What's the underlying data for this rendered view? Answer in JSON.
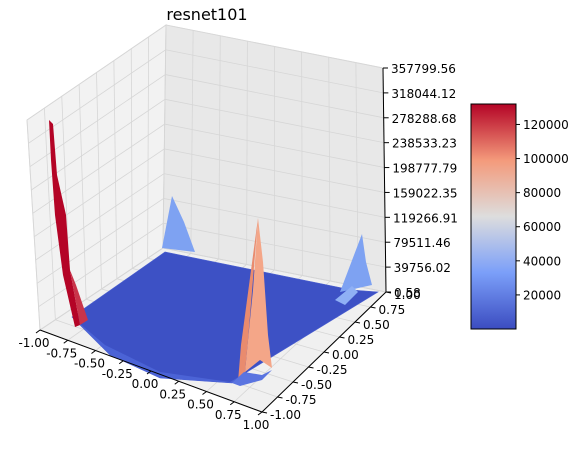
{
  "chart_data": {
    "type": "surface",
    "title": "resnet101",
    "x_ticks": [
      "-1.00",
      "-0.75",
      "-0.50",
      "-0.25",
      "0.00",
      "0.25",
      "0.50",
      "0.75",
      "1.00"
    ],
    "y_ticks": [
      "-1.00",
      "-0.75",
      "-0.50",
      "-0.25",
      "0.00",
      "0.25",
      "0.50",
      "0.75",
      "1.00"
    ],
    "z_ticks": [
      "0.58",
      "39756.02",
      "79511.46",
      "119266.91",
      "159022.35",
      "198777.79",
      "238533.23",
      "278288.68",
      "318044.12",
      "357799.56"
    ],
    "xlim": [
      -1.0,
      1.0
    ],
    "ylim": [
      -1.0,
      1.0
    ],
    "zlim": [
      0.58,
      357799.56
    ],
    "colormap": "coolwarm",
    "colorbar": {
      "ticks": [
        "20000",
        "40000",
        "60000",
        "80000",
        "100000",
        "120000"
      ],
      "range": [
        0.58,
        132000
      ]
    },
    "features": [
      {
        "kind": "edge-spike",
        "x": -1.0,
        "y": 1.0,
        "z": 305000,
        "color": "#b40426"
      },
      {
        "kind": "center-spike",
        "x": 0.0,
        "y": 0.0,
        "z": 125000,
        "color": "#f4a688"
      },
      {
        "kind": "corner-bump",
        "x": -1.0,
        "y": -1.0,
        "z": 40000,
        "color": "#7ea2f2"
      },
      {
        "kind": "corner-bump",
        "x": 1.0,
        "y": -1.0,
        "z": 40000,
        "color": "#7ea2f2"
      }
    ],
    "grid": true
  }
}
